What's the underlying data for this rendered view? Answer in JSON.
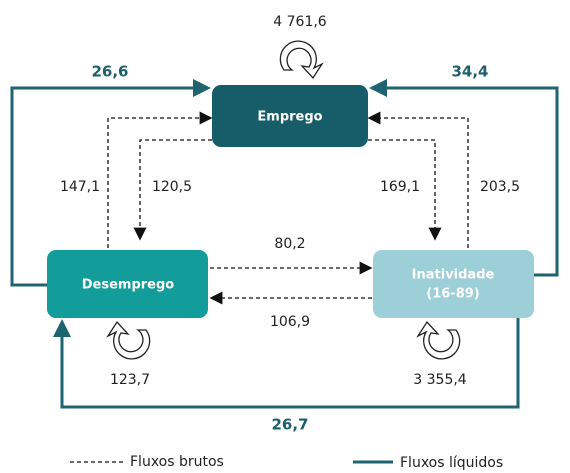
{
  "nodes": [
    {
      "label": "Emprego"
    },
    {
      "label": "Desemprego"
    },
    {
      "label_lines": [
        "Inatividade",
        "(16-89)"
      ]
    }
  ],
  "self_flows": [
    "4 761,6",
    "123,7",
    "3 355,4"
  ],
  "gross_flows": {
    "desemprego_to_emprego": "147,1",
    "emprego_to_desemprego": "120,5",
    "emprego_to_inatividade": "169,1",
    "inatividade_to_emprego": "203,5",
    "desemprego_to_inatividade": "80,2",
    "inatividade_to_desemprego": "106,9"
  },
  "net_flows": {
    "desemprego_to_emprego": "26,6",
    "inatividade_to_emprego": "34,4",
    "inatividade_to_desemprego": "26,7"
  },
  "legend": {
    "gross": "Fluxos brutos",
    "net": "Fluxos líquidos"
  }
}
